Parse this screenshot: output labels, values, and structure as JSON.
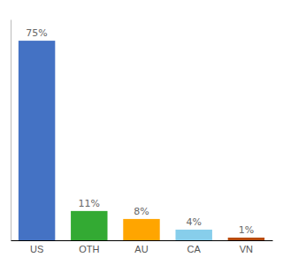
{
  "chart_data": {
    "type": "bar",
    "categories": [
      "US",
      "OTH",
      "AU",
      "CA",
      "VN"
    ],
    "values": [
      75,
      11,
      8,
      4,
      1
    ],
    "value_labels": [
      "75%",
      "11%",
      "8%",
      "4%",
      "1%"
    ],
    "colors": [
      "#4472C4",
      "#33AA33",
      "#FFA500",
      "#87CEEB",
      "#B84A0A"
    ],
    "ylim": [
      0,
      83
    ],
    "data_labels": true,
    "tick_labels": "x"
  }
}
